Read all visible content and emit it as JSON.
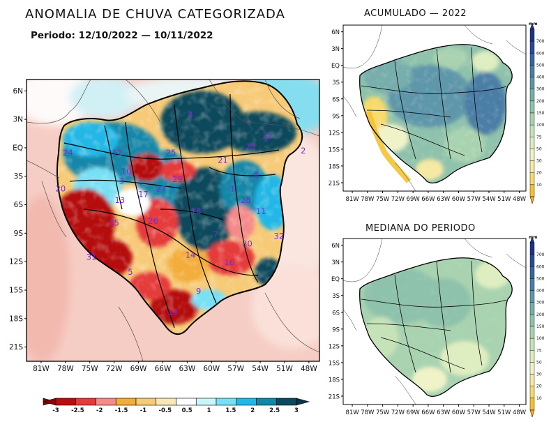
{
  "main_title": "ANOMALIA DE CHUVA CATEGORIZADA",
  "period": "Periodo: 12/10/2022 — 10/11/2022",
  "main_map": {
    "lat_labels": [
      "6N",
      "3N",
      "EQ",
      "3S",
      "6S",
      "9S",
      "12S",
      "15S",
      "18S",
      "21S"
    ],
    "lon_labels": [
      "81W",
      "78W",
      "75W",
      "72W",
      "69W",
      "66W",
      "63W",
      "60W",
      "57W",
      "54W",
      "51W",
      "48W"
    ],
    "regions": [
      {
        "label": "24",
        "x": -77.7,
        "y": -0.8
      },
      {
        "label": "12",
        "x": -71.6,
        "y": -0.8
      },
      {
        "label": "25",
        "x": -65.0,
        "y": -0.8
      },
      {
        "label": "4",
        "x": -62.6,
        "y": 3.2
      },
      {
        "label": "21",
        "x": -58.6,
        "y": -1.6
      },
      {
        "label": "23",
        "x": -55.2,
        "y": -0.2
      },
      {
        "label": "22",
        "x": -53.1,
        "y": 1.0
      },
      {
        "label": "2",
        "x": -48.7,
        "y": -0.6
      },
      {
        "label": "10",
        "x": -70.5,
        "y": -2.8
      },
      {
        "label": "8",
        "x": -54.5,
        "y": -3.2
      },
      {
        "label": "20",
        "x": -78.6,
        "y": -4.6
      },
      {
        "label": "3",
        "x": -71.1,
        "y": -3.8
      },
      {
        "label": "27",
        "x": -66.2,
        "y": -4.6
      },
      {
        "label": "29",
        "x": -64.2,
        "y": -3.6
      },
      {
        "label": "17",
        "x": -68.4,
        "y": -5.2
      },
      {
        "label": "13",
        "x": -71.3,
        "y": -5.8
      },
      {
        "label": "1",
        "x": -57.4,
        "y": -4.6
      },
      {
        "label": "28",
        "x": -55.8,
        "y": -5.8
      },
      {
        "label": "18",
        "x": -61.9,
        "y": -7.0
      },
      {
        "label": "11",
        "x": -53.9,
        "y": -7.0
      },
      {
        "label": "15",
        "x": -72.0,
        "y": -8.2
      },
      {
        "label": "26",
        "x": -67.2,
        "y": -8.0
      },
      {
        "label": "7",
        "x": -59.5,
        "y": -9.4
      },
      {
        "label": "30",
        "x": -55.6,
        "y": -10.4
      },
      {
        "label": "32",
        "x": -51.7,
        "y": -9.6
      },
      {
        "label": "31",
        "x": -74.8,
        "y": -11.8
      },
      {
        "label": "14",
        "x": -62.6,
        "y": -11.6
      },
      {
        "label": "16",
        "x": -57.8,
        "y": -12.4
      },
      {
        "label": "5",
        "x": -70.0,
        "y": -13.4
      },
      {
        "label": "9",
        "x": -61.6,
        "y": -15.4
      },
      {
        "label": "19",
        "x": -64.8,
        "y": -17.6
      }
    ]
  },
  "anomaly_colorbar": {
    "labels": [
      "-3",
      "-2.5",
      "-2",
      "-1.5",
      "-1",
      "-0.5",
      "0.5",
      "1",
      "1.5",
      "2",
      "2.5",
      "3"
    ],
    "colors": [
      "#b50f0f",
      "#e53a3a",
      "#f58a8a",
      "#f3ad3a",
      "#f7ca77",
      "#fbe6b6",
      "#ffffff",
      "#cdf4fb",
      "#78e0f4",
      "#22b7e6",
      "#1287a8",
      "#0b4a5c"
    ],
    "under_color": "#8f0000",
    "over_color": "#073545"
  },
  "acumulado": {
    "subtitle": "ACUMULADO — 2022",
    "unit": "mm"
  },
  "mediana": {
    "subtitle": "MEDIANA DO PERIODO",
    "unit": "mm"
  },
  "small_map_axes": {
    "lat_labels": [
      "6N",
      "3N",
      "EQ",
      "3S",
      "6S",
      "9S",
      "12S",
      "15S",
      "18S",
      "21S"
    ],
    "lon_labels": [
      "81W",
      "78W",
      "75W",
      "72W",
      "69W",
      "66W",
      "63W",
      "60W",
      "57W",
      "54W",
      "51W",
      "48W"
    ]
  },
  "precip_colorbar": {
    "labels": [
      "10",
      "20",
      "30",
      "50",
      "75",
      "100",
      "150",
      "200",
      "300",
      "400",
      "500",
      "600",
      "700"
    ],
    "colors": [
      "#f3c234",
      "#f7da6a",
      "#f5e9a3",
      "#f0f3c8",
      "#dfeec0",
      "#c6e2b8",
      "#a9d3b0",
      "#8fc2ac",
      "#77aeac",
      "#5f97aa",
      "#4b7ea6",
      "#3a64a0",
      "#2b4a96",
      "#1f3486"
    ],
    "under_color": "#f5b020"
  }
}
